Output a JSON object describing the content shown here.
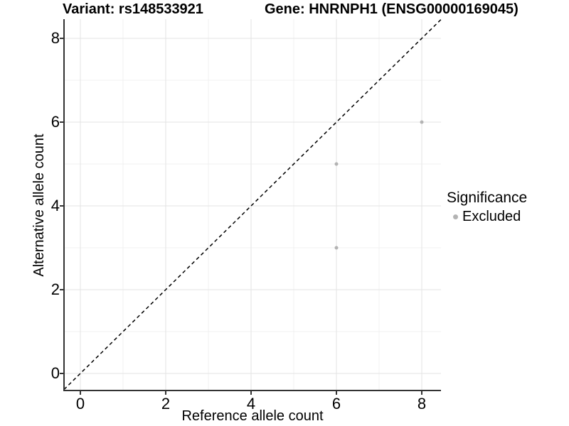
{
  "figure": {
    "title_left": "Variant: rs148533921",
    "title_right": "Gene: HNRNPH1 (ENSG00000169045)"
  },
  "legend": {
    "title": "Significance",
    "items": [
      {
        "label": "Excluded",
        "color": "#b3b3b3",
        "marker": "circle"
      }
    ]
  },
  "chart_data": {
    "type": "scatter",
    "title": "Variant: rs148533921   Gene: HNRNPH1 (ENSG00000169045)",
    "xlabel": "Reference allele count",
    "ylabel": "Alternative allele count",
    "xlim": [
      -0.383,
      8.45
    ],
    "ylim": [
      -0.407,
      8.458
    ],
    "xticks": [
      0,
      2,
      4,
      6,
      8
    ],
    "yticks": [
      0,
      2,
      4,
      6,
      8
    ],
    "xminor": [
      1,
      3,
      5,
      7
    ],
    "yminor": [
      1,
      3,
      5,
      7
    ],
    "grid": true,
    "legend_position": "right",
    "legend_title": "Significance",
    "series": [
      {
        "name": "Excluded",
        "color": "#b3b3b3",
        "points": [
          {
            "x": 6,
            "y": 3
          },
          {
            "x": 6,
            "y": 5
          },
          {
            "x": 8,
            "y": 6
          }
        ]
      }
    ],
    "reference_line": {
      "type": "identity",
      "slope": 1,
      "intercept": 0,
      "style": "dashed",
      "color": "#000000"
    },
    "colors": {
      "axis_line": "#333333",
      "tick_mark": "#333333",
      "grid_major": "#e3e3e3",
      "grid_minor": "#f1f1f1",
      "panel_background": "#ffffff",
      "point_excluded": "#b3b3b3"
    }
  }
}
